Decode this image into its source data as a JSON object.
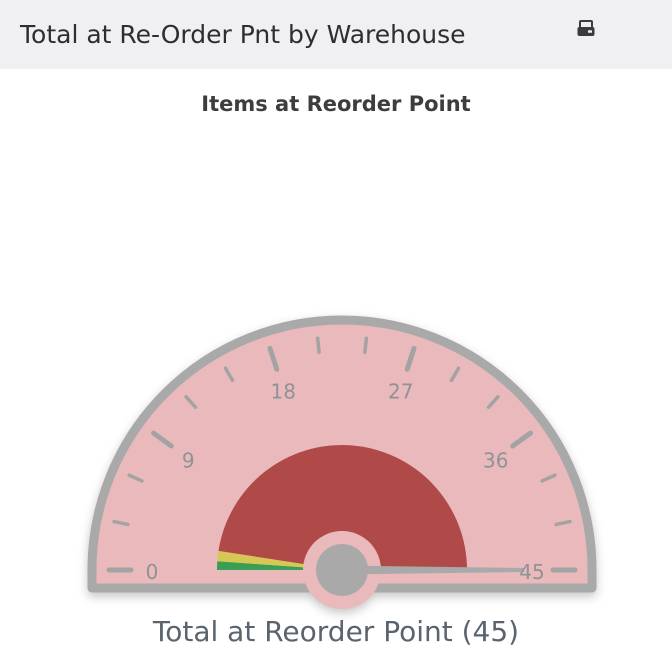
{
  "header": {
    "title": "Total at Re-Order Pnt by Warehouse"
  },
  "chart": {
    "title": "Items at Reorder Point",
    "footer_label": "Total at Reorder Point (45)"
  },
  "chart_data": {
    "type": "gauge",
    "title": "Items at Reorder Point",
    "min": 0,
    "max": 45,
    "value": 45,
    "footer_label": "Total at Reorder Point (45)",
    "major_ticks": [
      0,
      9,
      18,
      27,
      36,
      45
    ],
    "minor_tick_step": 3,
    "segments": [
      {
        "name": "green",
        "from": 0,
        "to": 1,
        "color": "#3a9e54"
      },
      {
        "name": "yellow",
        "from": 1,
        "to": 2.2,
        "color": "#d5c854"
      },
      {
        "name": "red",
        "from": 2.2,
        "to": 45,
        "color": "#b04a49"
      }
    ],
    "colors": {
      "face": "#e9b9bc",
      "frame": "#a9a9a9",
      "tick": "#a3a3a3",
      "tick_label": "#8f9396",
      "needle": "#a9a9a9",
      "hub": "#a9a9a9"
    },
    "legend": false
  }
}
